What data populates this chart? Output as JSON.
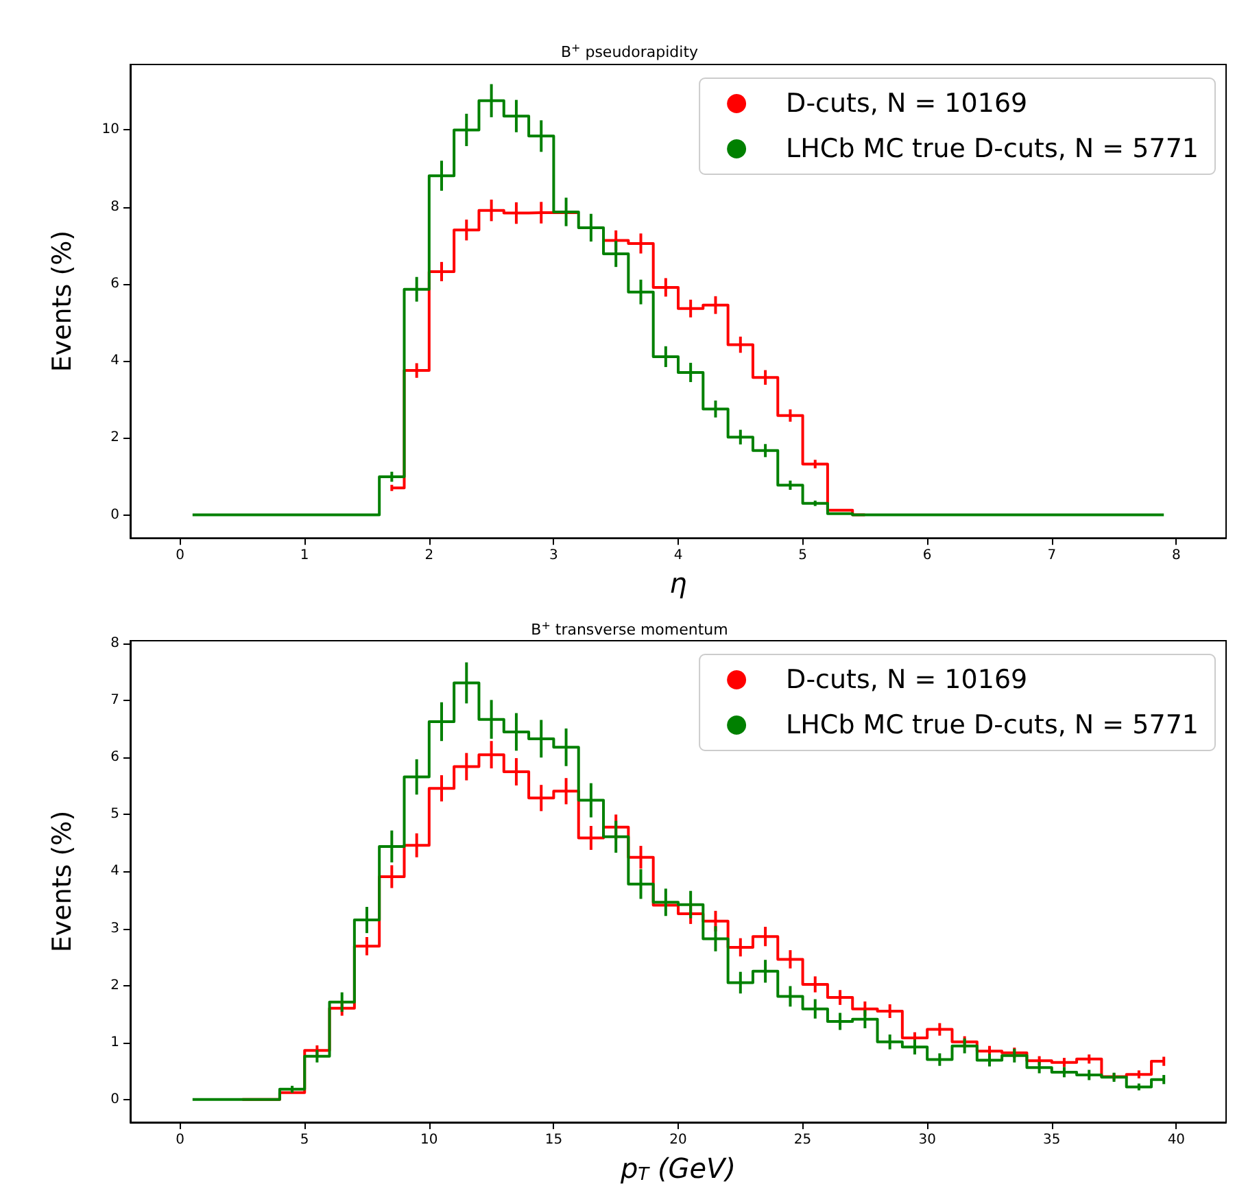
{
  "chart_data": [
    {
      "type": "step",
      "title": "B$^{+}$ pseudorapidity",
      "xlabel": "η",
      "ylabel": "Events (%)",
      "x": [
        0.1,
        0.3,
        0.5,
        0.7,
        0.9,
        1.1,
        1.3,
        1.5,
        1.7,
        1.9,
        2.1,
        2.3,
        2.5,
        2.7,
        2.9,
        3.1,
        3.3,
        3.5,
        3.7,
        3.9,
        4.1,
        4.3,
        4.5,
        4.7,
        4.9,
        5.1,
        5.3,
        5.5,
        5.7,
        5.9,
        6.1,
        6.3,
        6.5,
        6.7,
        6.9,
        7.1,
        7.3,
        7.5,
        7.7,
        7.9
      ],
      "series": [
        {
          "name": "D-cuts, N = 10169",
          "color": "#ff0000",
          "values": [
            null,
            null,
            null,
            null,
            null,
            null,
            null,
            null,
            0.7,
            3.75,
            6.32,
            7.4,
            7.91,
            7.84,
            7.85,
            7.85,
            null,
            7.13,
            7.05,
            5.91,
            5.36,
            5.45,
            4.42,
            3.57,
            2.58,
            1.32,
            0.12,
            0,
            null,
            null,
            null,
            null,
            null,
            null,
            null,
            null,
            null,
            null,
            null,
            null
          ],
          "errors": [
            null,
            null,
            null,
            null,
            null,
            null,
            null,
            null,
            0.08,
            0.19,
            0.25,
            0.27,
            0.28,
            0.28,
            0.28,
            null,
            null,
            0.26,
            0.26,
            0.24,
            0.23,
            0.23,
            0.21,
            0.19,
            0.16,
            0.11,
            null,
            null,
            null,
            null,
            null,
            null,
            null,
            null,
            null,
            null,
            null,
            null,
            null,
            null
          ]
        },
        {
          "name": "LHCb MC true D-cuts, N = 5771",
          "color": "#008000",
          "values": [
            0,
            0,
            0,
            0,
            0,
            0,
            0,
            0,
            0.99,
            5.86,
            8.81,
            10,
            10.76,
            10.36,
            9.84,
            7.87,
            7.46,
            6.78,
            5.79,
            4.11,
            3.7,
            2.75,
            2.02,
            1.67,
            0.77,
            0.3,
            0.03,
            0,
            0,
            0,
            0,
            0,
            0,
            0,
            0,
            0,
            0,
            0,
            0,
            0
          ],
          "errors": [
            null,
            null,
            null,
            null,
            null,
            null,
            null,
            null,
            0.13,
            0.32,
            0.39,
            0.42,
            0.43,
            0.42,
            0.41,
            0.37,
            0.36,
            0.34,
            0.32,
            0.27,
            0.25,
            0.22,
            0.19,
            0.17,
            0.12,
            0.07,
            null,
            null,
            null,
            null,
            null,
            null,
            null,
            null,
            null,
            null,
            null,
            null,
            null,
            null
          ]
        }
      ],
      "xlim": [
        -0.4,
        8.4
      ],
      "xticks": [
        0,
        1,
        2,
        3,
        4,
        5,
        6,
        7,
        8
      ],
      "ylim": [
        -0.6,
        11.7
      ],
      "yticks": [
        0,
        2,
        4,
        6,
        8,
        10
      ],
      "legend": "top right"
    },
    {
      "type": "step",
      "title": "B$^{+}$ transverse momentum",
      "xlabel": "p$_{T}$ (GeV)",
      "ylabel": "Events (%)",
      "x": [
        0.5,
        1.5,
        2.5,
        3.5,
        4.5,
        5.5,
        6.5,
        7.5,
        8.5,
        9.5,
        10.5,
        11.5,
        12.5,
        13.5,
        14.5,
        15.5,
        16.5,
        17.5,
        18.5,
        19.5,
        20.5,
        21.5,
        22.5,
        23.5,
        24.5,
        25.5,
        26.5,
        27.5,
        28.5,
        29.5,
        30.5,
        31.5,
        32.5,
        33.5,
        34.5,
        35.5,
        36.5,
        37.5,
        38.5,
        39.5
      ],
      "series": [
        {
          "name": "D-cuts, N = 10169",
          "color": "#ff0000",
          "values": [
            null,
            null,
            0,
            0,
            0.12,
            0.86,
            1.6,
            2.69,
            3.91,
            4.46,
            5.46,
            5.84,
            6.05,
            5.75,
            5.29,
            5.41,
            4.59,
            4.78,
            4.25,
            3.41,
            3.26,
            3.13,
            2.67,
            2.86,
            2.46,
            2.02,
            1.79,
            1.59,
            1.55,
            1.08,
            1.23,
            1.01,
            0.85,
            0.82,
            0.68,
            0.65,
            0.71,
            0.4,
            0.44,
            0.67
          ],
          "errors": [
            null,
            null,
            null,
            null,
            null,
            0.09,
            0.13,
            0.16,
            0.2,
            0.21,
            0.23,
            0.24,
            0.24,
            0.24,
            0.23,
            0.23,
            0.21,
            0.22,
            0.2,
            null,
            0.18,
            0.18,
            0.16,
            0.17,
            0.16,
            0.14,
            0.13,
            0.13,
            0.12,
            0.1,
            0.11,
            0.1,
            0.09,
            0.09,
            0.08,
            0.08,
            0.08,
            0.06,
            0.07,
            0.08
          ]
        },
        {
          "name": "LHCb MC true D-cuts, N = 5771",
          "color": "#008000",
          "values": [
            0,
            0,
            0,
            0,
            0.18,
            0.76,
            1.71,
            3.15,
            4.44,
            5.66,
            6.63,
            7.31,
            6.67,
            6.45,
            6.33,
            6.18,
            5.25,
            4.61,
            3.78,
            3.46,
            3.42,
            2.82,
            2.05,
            2.25,
            1.81,
            1.59,
            1.37,
            1.41,
            1.01,
            0.92,
            0.7,
            0.94,
            0.69,
            0.77,
            0.56,
            0.48,
            0.43,
            0.39,
            0.22,
            0.35
          ],
          "errors": [
            null,
            null,
            null,
            null,
            0.06,
            0.11,
            0.17,
            0.23,
            0.28,
            0.31,
            0.34,
            0.36,
            0.34,
            0.33,
            0.33,
            0.33,
            0.3,
            0.28,
            0.26,
            0.24,
            0.24,
            0.22,
            0.19,
            0.2,
            0.18,
            0.17,
            0.15,
            0.16,
            0.13,
            0.13,
            0.11,
            0.13,
            0.11,
            0.12,
            0.1,
            0.09,
            0.09,
            0.08,
            0.06,
            0.08
          ]
        }
      ],
      "xlim": [
        -2,
        42
      ],
      "xticks": [
        0,
        5,
        10,
        15,
        20,
        25,
        30,
        35,
        40
      ],
      "ylim": [
        -0.4,
        8.05
      ],
      "yticks": [
        0,
        1,
        2,
        3,
        4,
        5,
        6,
        7,
        8
      ],
      "legend": "top right"
    }
  ]
}
